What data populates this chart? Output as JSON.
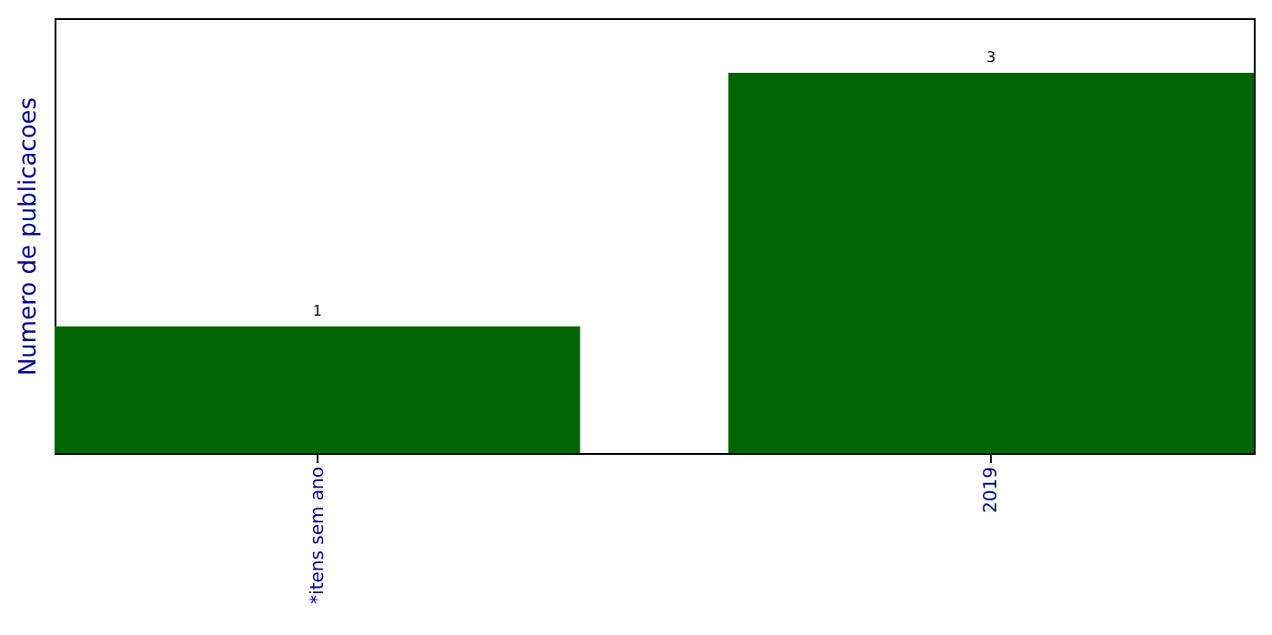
{
  "chart_data": {
    "type": "bar",
    "ylabel": "Numero de publicacoes",
    "categories": [
      "*itens sem ano",
      "2019"
    ],
    "values": [
      1,
      3
    ],
    "color": "#006400",
    "data_labels": true,
    "ylim": [
      0,
      3.43
    ],
    "tick_labels": "x",
    "grid": false
  }
}
